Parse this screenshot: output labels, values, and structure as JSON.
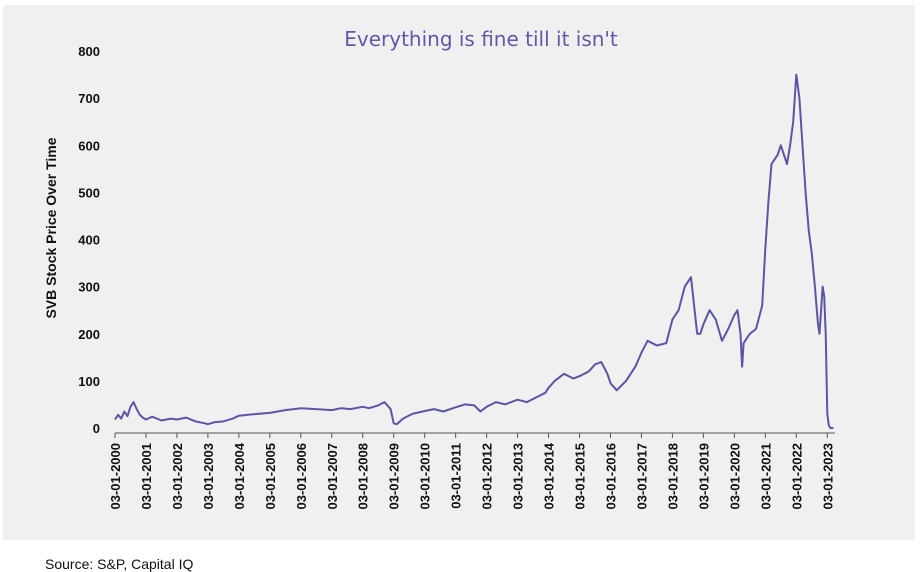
{
  "chart_data": {
    "type": "line",
    "title": "Everything is fine till it isn't",
    "title_color": "#5f5aa8",
    "line_color": "#5a56a6",
    "ylabel": "SVB Stock Price Over Time",
    "xlabel": "",
    "ylim": [
      0,
      800
    ],
    "yticks": [
      0,
      100,
      200,
      300,
      400,
      500,
      600,
      700,
      800
    ],
    "xlim": [
      2000.0,
      2023.25
    ],
    "x_tick_labels": [
      "03-01-2000",
      "03-01-2001",
      "03-01-2002",
      "03-01-2003",
      "03-01-2004",
      "03-01-2005",
      "03-01-2006",
      "03-01-2007",
      "03-01-2008",
      "03-01-2009",
      "03-01-2010",
      "03-01-2011",
      "03-01-2012",
      "03-01-2013",
      "03-01-2014",
      "03-01-2015",
      "03-01-2016",
      "03-01-2017",
      "03-01-2018",
      "03-01-2019",
      "03-01-2020",
      "03-01-2021",
      "03-01-2022",
      "03-01-2023"
    ],
    "series": [
      {
        "name": "SVB",
        "x": [
          2000.0,
          2000.1,
          2000.2,
          2000.3,
          2000.4,
          2000.5,
          2000.6,
          2000.7,
          2000.8,
          2000.9,
          2001.0,
          2001.2,
          2001.5,
          2001.8,
          2002.0,
          2002.3,
          2002.6,
          2002.9,
          2003.0,
          2003.2,
          2003.5,
          2003.8,
          2004.0,
          2004.3,
          2004.6,
          2005.0,
          2005.5,
          2006.0,
          2006.5,
          2007.0,
          2007.3,
          2007.6,
          2008.0,
          2008.2,
          2008.5,
          2008.7,
          2008.9,
          2009.0,
          2009.1,
          2009.3,
          2009.6,
          2010.0,
          2010.3,
          2010.6,
          2011.0,
          2011.3,
          2011.6,
          2011.8,
          2012.0,
          2012.3,
          2012.6,
          2013.0,
          2013.3,
          2013.6,
          2013.9,
          2014.0,
          2014.2,
          2014.5,
          2014.8,
          2015.0,
          2015.3,
          2015.5,
          2015.7,
          2015.9,
          2016.0,
          2016.2,
          2016.5,
          2016.8,
          2017.0,
          2017.2,
          2017.5,
          2017.8,
          2018.0,
          2018.2,
          2018.4,
          2018.6,
          2018.8,
          2018.9,
          2019.0,
          2019.2,
          2019.4,
          2019.6,
          2019.8,
          2020.0,
          2020.1,
          2020.2,
          2020.25,
          2020.3,
          2020.5,
          2020.7,
          2020.9,
          2021.0,
          2021.1,
          2021.2,
          2021.4,
          2021.5,
          2021.7,
          2021.8,
          2021.9,
          2022.0,
          2022.1,
          2022.2,
          2022.3,
          2022.4,
          2022.5,
          2022.6,
          2022.7,
          2022.75,
          2022.8,
          2022.85,
          2022.9,
          2022.95,
          2023.0,
          2023.05,
          2023.1,
          2023.15,
          2023.2
        ],
        "values": [
          18,
          28,
          20,
          35,
          25,
          45,
          55,
          40,
          28,
          22,
          18,
          24,
          16,
          20,
          18,
          22,
          14,
          10,
          8,
          12,
          14,
          20,
          26,
          28,
          30,
          32,
          38,
          42,
          40,
          38,
          42,
          40,
          45,
          42,
          48,
          55,
          40,
          10,
          8,
          20,
          30,
          36,
          40,
          35,
          44,
          50,
          48,
          35,
          45,
          55,
          50,
          60,
          55,
          65,
          75,
          85,
          100,
          115,
          105,
          110,
          120,
          135,
          140,
          115,
          95,
          80,
          100,
          130,
          160,
          185,
          175,
          180,
          230,
          250,
          300,
          320,
          200,
          200,
          220,
          250,
          230,
          185,
          210,
          240,
          250,
          200,
          130,
          180,
          200,
          210,
          260,
          380,
          480,
          560,
          580,
          600,
          560,
          600,
          650,
          750,
          700,
          600,
          500,
          420,
          370,
          300,
          220,
          200,
          250,
          300,
          280,
          200,
          30,
          5,
          0,
          0,
          0
        ]
      }
    ]
  },
  "source": "Source: S&P, Capital IQ"
}
